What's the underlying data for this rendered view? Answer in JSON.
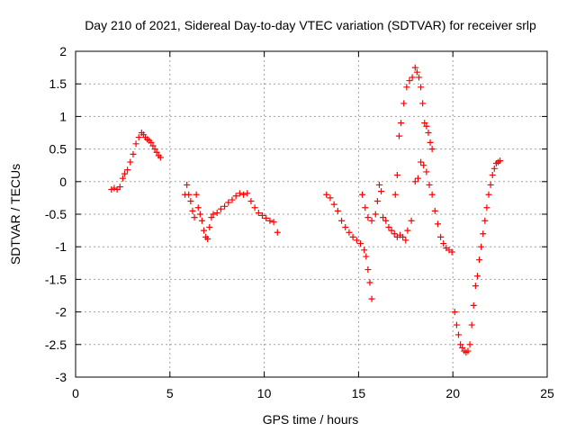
{
  "chart_data": {
    "type": "scatter",
    "title": "Day 210 of 2021, Sidereal Day-to-day VTEC variation (SDTVAR) for receiver srlp",
    "xlabel": "GPS time / hours",
    "ylabel": "SDTVAR / TECUs",
    "xlim": [
      0,
      25
    ],
    "ylim": [
      -3,
      2
    ],
    "xticks": [
      0,
      5,
      10,
      15,
      20,
      25
    ],
    "yticks": [
      -3,
      -2.5,
      -2,
      -1.5,
      -1,
      -0.5,
      0,
      0.5,
      1,
      1.5,
      2
    ],
    "grid": true,
    "marker": "+",
    "color": "#ff0000",
    "series": [
      {
        "x": [
          1.9,
          2.05,
          2.2,
          2.35,
          2.5,
          2.6,
          2.75,
          2.9,
          3.05,
          3.2,
          3.35,
          3.5,
          3.6,
          3.7,
          3.8,
          3.9,
          4.0,
          4.1,
          4.2,
          4.3,
          4.4,
          4.5,
          5.8,
          5.9,
          6.0,
          6.1,
          6.2,
          6.3,
          6.4,
          6.5,
          6.6,
          6.7,
          6.8,
          6.9,
          7.0,
          7.1,
          7.2,
          7.3,
          7.5,
          7.7,
          7.9,
          8.1,
          8.3,
          8.5,
          8.7,
          8.9,
          9.1,
          9.3,
          9.5,
          9.7,
          9.9,
          10.1,
          10.3,
          10.5,
          10.7,
          13.3,
          13.5,
          13.7,
          13.9,
          14.1,
          14.3,
          14.5,
          14.7,
          14.9,
          15.1,
          15.3,
          15.4,
          15.5,
          15.6,
          15.7,
          15.2,
          15.35,
          15.5,
          15.7,
          15.9,
          16.0,
          16.1,
          16.2,
          16.3,
          16.45,
          16.6,
          16.75,
          16.9,
          17.05,
          17.2,
          17.35,
          17.5,
          16.95,
          17.05,
          17.15,
          17.25,
          17.4,
          17.55,
          17.7,
          17.85,
          18.0,
          18.1,
          18.2,
          18.3,
          18.4,
          18.5,
          18.6,
          18.7,
          18.8,
          18.9,
          17.6,
          17.8,
          18.0,
          18.15,
          18.3,
          18.45,
          18.6,
          18.75,
          18.9,
          19.05,
          19.2,
          19.35,
          19.5,
          19.65,
          19.8,
          19.95,
          20.1,
          20.2,
          20.3,
          20.4,
          20.5,
          20.6,
          20.7,
          20.8,
          20.9,
          21.0,
          21.1,
          21.2,
          21.3,
          21.4,
          21.5,
          21.6,
          21.7,
          21.8,
          21.9,
          22.0,
          22.1,
          22.2,
          22.3,
          22.4,
          22.5
        ],
        "y": [
          -0.12,
          -0.1,
          -0.12,
          -0.08,
          0.05,
          0.12,
          0.18,
          0.3,
          0.42,
          0.58,
          0.68,
          0.75,
          0.72,
          0.68,
          0.65,
          0.63,
          0.6,
          0.55,
          0.5,
          0.45,
          0.4,
          0.37,
          -0.2,
          -0.05,
          -0.2,
          -0.3,
          -0.45,
          -0.55,
          -0.2,
          -0.4,
          -0.5,
          -0.6,
          -0.75,
          -0.85,
          -0.88,
          -0.7,
          -0.55,
          -0.5,
          -0.48,
          -0.42,
          -0.38,
          -0.32,
          -0.28,
          -0.22,
          -0.18,
          -0.2,
          -0.18,
          -0.3,
          -0.4,
          -0.48,
          -0.52,
          -0.56,
          -0.6,
          -0.62,
          -0.78,
          -0.2,
          -0.25,
          -0.35,
          -0.45,
          -0.6,
          -0.7,
          -0.78,
          -0.85,
          -0.9,
          -0.95,
          -1.05,
          -1.15,
          -1.35,
          -1.55,
          -1.8,
          -0.2,
          -0.4,
          -0.55,
          -0.6,
          -0.5,
          -0.3,
          -0.05,
          -0.15,
          -0.55,
          -0.6,
          -0.7,
          -0.75,
          -0.8,
          -0.85,
          -0.82,
          -0.85,
          -0.9,
          -0.2,
          0.1,
          0.7,
          0.9,
          1.2,
          1.45,
          1.55,
          1.6,
          1.75,
          1.68,
          1.6,
          1.45,
          1.2,
          0.9,
          0.85,
          0.75,
          0.6,
          0.5,
          -0.75,
          -0.6,
          0.0,
          0.05,
          0.3,
          0.25,
          0.15,
          -0.05,
          -0.2,
          -0.45,
          -0.65,
          -0.85,
          -0.95,
          -1.02,
          -1.05,
          -1.08,
          -2.0,
          -2.2,
          -2.35,
          -2.5,
          -2.55,
          -2.6,
          -2.62,
          -2.6,
          -2.5,
          -2.2,
          -1.9,
          -1.6,
          -1.45,
          -1.2,
          -1.0,
          -0.8,
          -0.6,
          -0.4,
          -0.2,
          -0.05,
          0.1,
          0.2,
          0.28,
          0.3,
          0.32
        ]
      }
    ]
  }
}
